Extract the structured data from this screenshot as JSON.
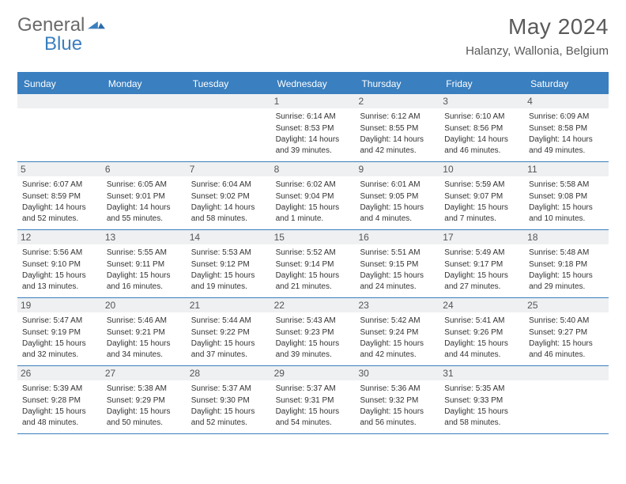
{
  "brand": {
    "name_part1": "General",
    "name_part2": "Blue"
  },
  "header": {
    "month_title": "May 2024",
    "location": "Halanzy, Wallonia, Belgium"
  },
  "colors": {
    "brand_blue": "#3a7fbf",
    "text_gray": "#5a5a5a",
    "cell_header_bg": "#eef0f2"
  },
  "day_headers": [
    "Sunday",
    "Monday",
    "Tuesday",
    "Wednesday",
    "Thursday",
    "Friday",
    "Saturday"
  ],
  "weeks": [
    [
      {
        "n": "",
        "sr": "",
        "ss": "",
        "dl": ""
      },
      {
        "n": "",
        "sr": "",
        "ss": "",
        "dl": ""
      },
      {
        "n": "",
        "sr": "",
        "ss": "",
        "dl": ""
      },
      {
        "n": "1",
        "sr": "Sunrise: 6:14 AM",
        "ss": "Sunset: 8:53 PM",
        "dl": "Daylight: 14 hours and 39 minutes."
      },
      {
        "n": "2",
        "sr": "Sunrise: 6:12 AM",
        "ss": "Sunset: 8:55 PM",
        "dl": "Daylight: 14 hours and 42 minutes."
      },
      {
        "n": "3",
        "sr": "Sunrise: 6:10 AM",
        "ss": "Sunset: 8:56 PM",
        "dl": "Daylight: 14 hours and 46 minutes."
      },
      {
        "n": "4",
        "sr": "Sunrise: 6:09 AM",
        "ss": "Sunset: 8:58 PM",
        "dl": "Daylight: 14 hours and 49 minutes."
      }
    ],
    [
      {
        "n": "5",
        "sr": "Sunrise: 6:07 AM",
        "ss": "Sunset: 8:59 PM",
        "dl": "Daylight: 14 hours and 52 minutes."
      },
      {
        "n": "6",
        "sr": "Sunrise: 6:05 AM",
        "ss": "Sunset: 9:01 PM",
        "dl": "Daylight: 14 hours and 55 minutes."
      },
      {
        "n": "7",
        "sr": "Sunrise: 6:04 AM",
        "ss": "Sunset: 9:02 PM",
        "dl": "Daylight: 14 hours and 58 minutes."
      },
      {
        "n": "8",
        "sr": "Sunrise: 6:02 AM",
        "ss": "Sunset: 9:04 PM",
        "dl": "Daylight: 15 hours and 1 minute."
      },
      {
        "n": "9",
        "sr": "Sunrise: 6:01 AM",
        "ss": "Sunset: 9:05 PM",
        "dl": "Daylight: 15 hours and 4 minutes."
      },
      {
        "n": "10",
        "sr": "Sunrise: 5:59 AM",
        "ss": "Sunset: 9:07 PM",
        "dl": "Daylight: 15 hours and 7 minutes."
      },
      {
        "n": "11",
        "sr": "Sunrise: 5:58 AM",
        "ss": "Sunset: 9:08 PM",
        "dl": "Daylight: 15 hours and 10 minutes."
      }
    ],
    [
      {
        "n": "12",
        "sr": "Sunrise: 5:56 AM",
        "ss": "Sunset: 9:10 PM",
        "dl": "Daylight: 15 hours and 13 minutes."
      },
      {
        "n": "13",
        "sr": "Sunrise: 5:55 AM",
        "ss": "Sunset: 9:11 PM",
        "dl": "Daylight: 15 hours and 16 minutes."
      },
      {
        "n": "14",
        "sr": "Sunrise: 5:53 AM",
        "ss": "Sunset: 9:12 PM",
        "dl": "Daylight: 15 hours and 19 minutes."
      },
      {
        "n": "15",
        "sr": "Sunrise: 5:52 AM",
        "ss": "Sunset: 9:14 PM",
        "dl": "Daylight: 15 hours and 21 minutes."
      },
      {
        "n": "16",
        "sr": "Sunrise: 5:51 AM",
        "ss": "Sunset: 9:15 PM",
        "dl": "Daylight: 15 hours and 24 minutes."
      },
      {
        "n": "17",
        "sr": "Sunrise: 5:49 AM",
        "ss": "Sunset: 9:17 PM",
        "dl": "Daylight: 15 hours and 27 minutes."
      },
      {
        "n": "18",
        "sr": "Sunrise: 5:48 AM",
        "ss": "Sunset: 9:18 PM",
        "dl": "Daylight: 15 hours and 29 minutes."
      }
    ],
    [
      {
        "n": "19",
        "sr": "Sunrise: 5:47 AM",
        "ss": "Sunset: 9:19 PM",
        "dl": "Daylight: 15 hours and 32 minutes."
      },
      {
        "n": "20",
        "sr": "Sunrise: 5:46 AM",
        "ss": "Sunset: 9:21 PM",
        "dl": "Daylight: 15 hours and 34 minutes."
      },
      {
        "n": "21",
        "sr": "Sunrise: 5:44 AM",
        "ss": "Sunset: 9:22 PM",
        "dl": "Daylight: 15 hours and 37 minutes."
      },
      {
        "n": "22",
        "sr": "Sunrise: 5:43 AM",
        "ss": "Sunset: 9:23 PM",
        "dl": "Daylight: 15 hours and 39 minutes."
      },
      {
        "n": "23",
        "sr": "Sunrise: 5:42 AM",
        "ss": "Sunset: 9:24 PM",
        "dl": "Daylight: 15 hours and 42 minutes."
      },
      {
        "n": "24",
        "sr": "Sunrise: 5:41 AM",
        "ss": "Sunset: 9:26 PM",
        "dl": "Daylight: 15 hours and 44 minutes."
      },
      {
        "n": "25",
        "sr": "Sunrise: 5:40 AM",
        "ss": "Sunset: 9:27 PM",
        "dl": "Daylight: 15 hours and 46 minutes."
      }
    ],
    [
      {
        "n": "26",
        "sr": "Sunrise: 5:39 AM",
        "ss": "Sunset: 9:28 PM",
        "dl": "Daylight: 15 hours and 48 minutes."
      },
      {
        "n": "27",
        "sr": "Sunrise: 5:38 AM",
        "ss": "Sunset: 9:29 PM",
        "dl": "Daylight: 15 hours and 50 minutes."
      },
      {
        "n": "28",
        "sr": "Sunrise: 5:37 AM",
        "ss": "Sunset: 9:30 PM",
        "dl": "Daylight: 15 hours and 52 minutes."
      },
      {
        "n": "29",
        "sr": "Sunrise: 5:37 AM",
        "ss": "Sunset: 9:31 PM",
        "dl": "Daylight: 15 hours and 54 minutes."
      },
      {
        "n": "30",
        "sr": "Sunrise: 5:36 AM",
        "ss": "Sunset: 9:32 PM",
        "dl": "Daylight: 15 hours and 56 minutes."
      },
      {
        "n": "31",
        "sr": "Sunrise: 5:35 AM",
        "ss": "Sunset: 9:33 PM",
        "dl": "Daylight: 15 hours and 58 minutes."
      },
      {
        "n": "",
        "sr": "",
        "ss": "",
        "dl": ""
      }
    ]
  ]
}
